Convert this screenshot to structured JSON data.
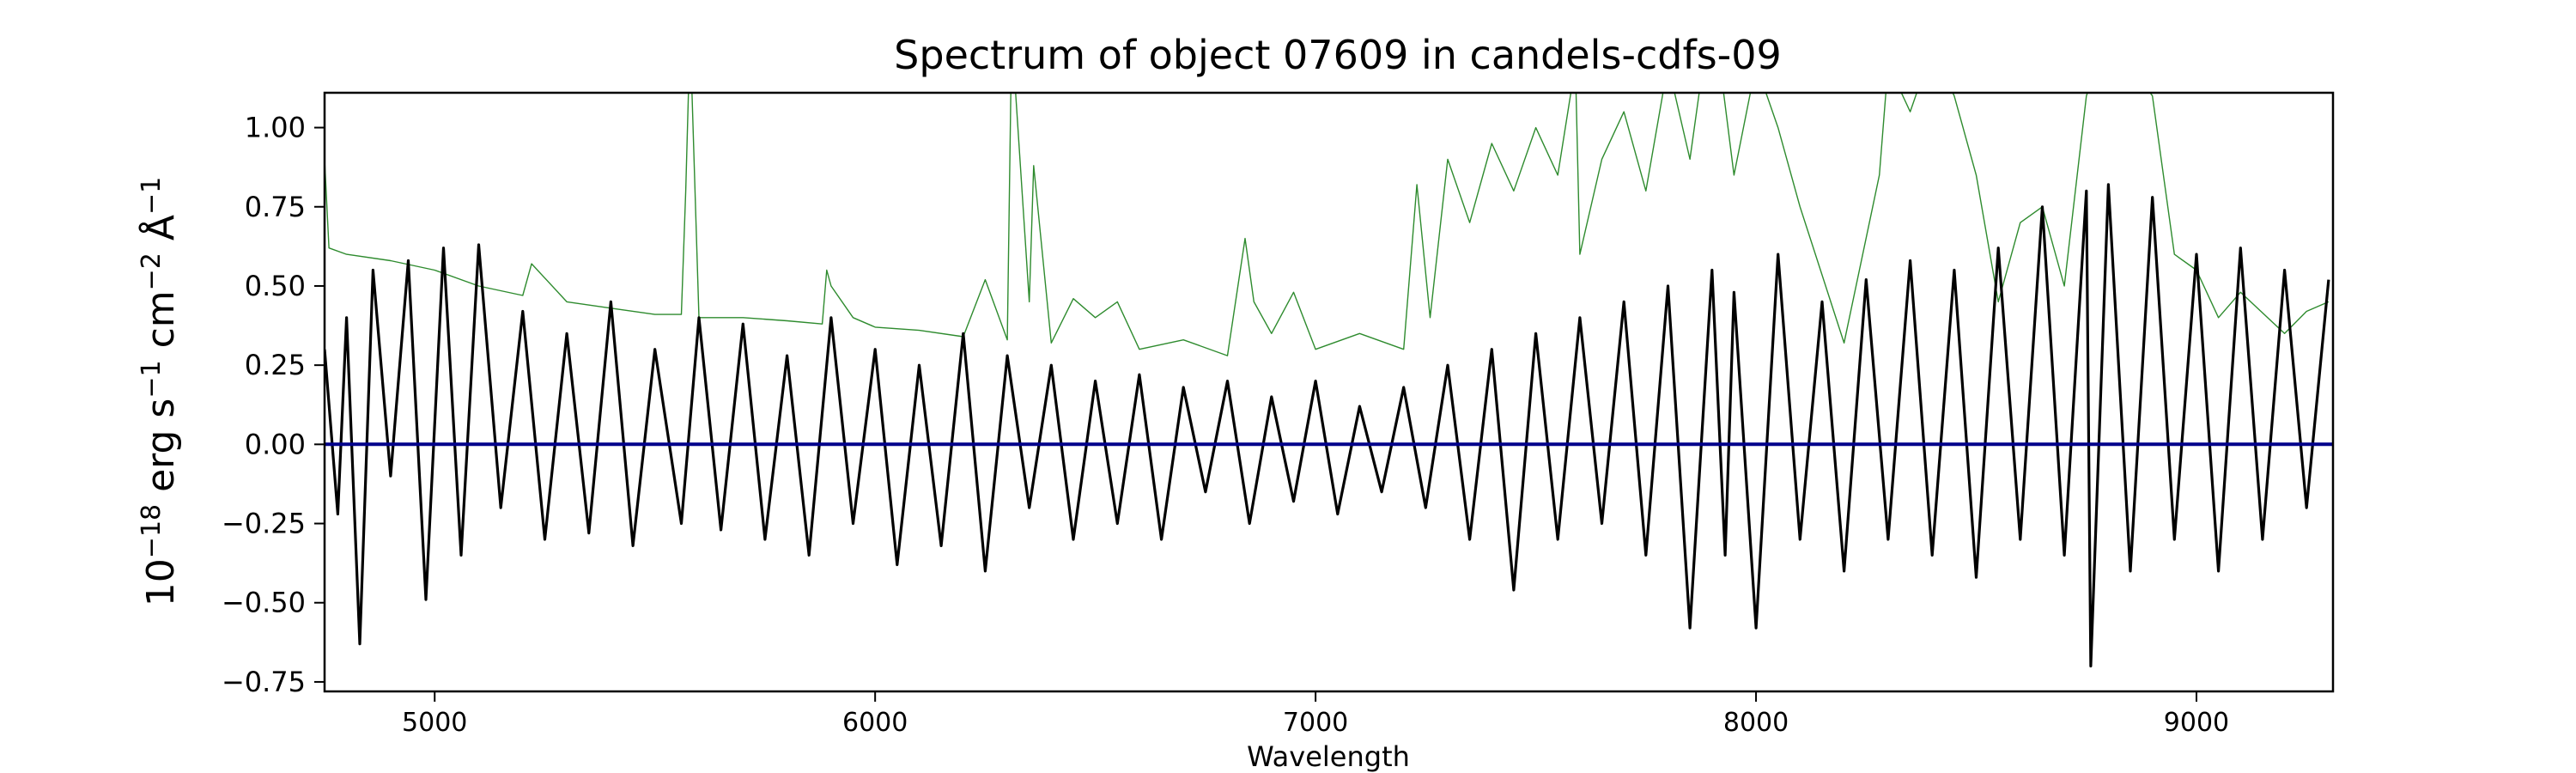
{
  "chart_data": {
    "type": "line",
    "title": "Spectrum of object 07609 in candels-cdfs-09",
    "xlabel": "Wavelength",
    "ylabel": {
      "base": "10",
      "exp1": "−18",
      "t1": " erg s",
      "exp2": "−1",
      "t2": " cm",
      "exp3": "−2",
      "t3": " Å",
      "exp4": "−1"
    },
    "xlim": [
      4750,
      9310
    ],
    "ylim": [
      -0.78,
      1.11
    ],
    "x_ticks": [
      5000,
      6000,
      7000,
      8000,
      9000
    ],
    "x_tick_labels": [
      "5000",
      "6000",
      "7000",
      "8000",
      "9000"
    ],
    "y_ticks": [
      -0.75,
      -0.5,
      -0.25,
      0.0,
      0.25,
      0.5,
      0.75,
      1.0
    ],
    "y_tick_labels": [
      "−0.75",
      "−0.50",
      "−0.25",
      "0.00",
      "0.25",
      "0.50",
      "0.75",
      "1.00"
    ],
    "grid": false,
    "legend": "none",
    "series": [
      {
        "role": "flux",
        "color": "#000000",
        "x": [
          4750,
          4780,
          4800,
          4830,
          4860,
          4900,
          4940,
          4980,
          5020,
          5060,
          5100,
          5150,
          5200,
          5250,
          5300,
          5350,
          5400,
          5450,
          5500,
          5560,
          5600,
          5650,
          5700,
          5750,
          5800,
          5850,
          5900,
          5950,
          6000,
          6050,
          6100,
          6150,
          6200,
          6250,
          6300,
          6350,
          6400,
          6450,
          6500,
          6550,
          6600,
          6650,
          6700,
          6750,
          6800,
          6850,
          6900,
          6950,
          7000,
          7050,
          7100,
          7150,
          7200,
          7250,
          7300,
          7350,
          7400,
          7450,
          7500,
          7550,
          7600,
          7650,
          7700,
          7750,
          7800,
          7850,
          7900,
          7930,
          7950,
          8000,
          8050,
          8100,
          8150,
          8200,
          8250,
          8300,
          8350,
          8400,
          8450,
          8500,
          8550,
          8600,
          8650,
          8700,
          8750,
          8760,
          8800,
          8850,
          8900,
          8950,
          9000,
          9050,
          9100,
          9150,
          9200,
          9250,
          9300
        ],
        "y": [
          0.3,
          -0.22,
          0.4,
          -0.63,
          0.55,
          -0.1,
          0.58,
          -0.49,
          0.62,
          -0.35,
          0.63,
          -0.2,
          0.42,
          -0.3,
          0.35,
          -0.28,
          0.45,
          -0.32,
          0.3,
          -0.25,
          0.4,
          -0.27,
          0.38,
          -0.3,
          0.28,
          -0.35,
          0.4,
          -0.25,
          0.3,
          -0.38,
          0.25,
          -0.32,
          0.35,
          -0.4,
          0.28,
          -0.2,
          0.25,
          -0.3,
          0.2,
          -0.25,
          0.22,
          -0.3,
          0.18,
          -0.15,
          0.2,
          -0.25,
          0.15,
          -0.18,
          0.2,
          -0.22,
          0.12,
          -0.15,
          0.18,
          -0.2,
          0.25,
          -0.3,
          0.3,
          -0.46,
          0.35,
          -0.3,
          0.4,
          -0.25,
          0.45,
          -0.35,
          0.5,
          -0.58,
          0.55,
          -0.35,
          0.48,
          -0.58,
          0.6,
          -0.3,
          0.45,
          -0.4,
          0.52,
          -0.3,
          0.58,
          -0.35,
          0.55,
          -0.42,
          0.62,
          -0.3,
          0.75,
          -0.35,
          0.8,
          -0.7,
          0.82,
          -0.4,
          0.78,
          -0.3,
          0.6,
          -0.4,
          0.62,
          -0.3,
          0.55,
          -0.2,
          0.52
        ]
      },
      {
        "role": "error",
        "color": "#2e8b2e",
        "x": [
          4750,
          4760,
          4800,
          4900,
          5000,
          5100,
          5200,
          5220,
          5300,
          5400,
          5500,
          5560,
          5570,
          5580,
          5600,
          5700,
          5800,
          5880,
          5890,
          5900,
          5950,
          6000,
          6100,
          6200,
          6250,
          6300,
          6310,
          6350,
          6360,
          6400,
          6450,
          6500,
          6550,
          6600,
          6700,
          6800,
          6840,
          6860,
          6900,
          6950,
          7000,
          7100,
          7200,
          7230,
          7260,
          7300,
          7350,
          7400,
          7450,
          7500,
          7550,
          7590,
          7600,
          7650,
          7700,
          7750,
          7800,
          7850,
          7900,
          7950,
          8000,
          8050,
          8100,
          8200,
          8280,
          8300,
          8350,
          8400,
          8450,
          8500,
          8550,
          8600,
          8650,
          8700,
          8750,
          8800,
          8850,
          8900,
          8950,
          9000,
          9050,
          9100,
          9200,
          9250,
          9300
        ],
        "y": [
          0.9,
          0.62,
          0.6,
          0.58,
          0.55,
          0.5,
          0.47,
          0.57,
          0.45,
          0.43,
          0.41,
          0.41,
          0.8,
          1.3,
          0.4,
          0.4,
          0.39,
          0.38,
          0.55,
          0.5,
          0.4,
          0.37,
          0.36,
          0.34,
          0.52,
          0.33,
          1.3,
          0.45,
          0.88,
          0.32,
          0.46,
          0.4,
          0.45,
          0.3,
          0.33,
          0.28,
          0.65,
          0.45,
          0.35,
          0.48,
          0.3,
          0.35,
          0.3,
          0.82,
          0.4,
          0.9,
          0.7,
          0.95,
          0.8,
          1.0,
          0.85,
          1.2,
          0.6,
          0.9,
          1.05,
          0.8,
          1.2,
          0.9,
          1.4,
          0.85,
          1.2,
          1.0,
          0.75,
          0.32,
          0.85,
          1.2,
          1.05,
          1.25,
          1.1,
          0.85,
          0.45,
          0.7,
          0.75,
          0.5,
          1.1,
          1.3,
          1.2,
          1.1,
          0.6,
          0.55,
          0.4,
          0.48,
          0.35,
          0.42,
          0.45
        ]
      },
      {
        "role": "zero",
        "color": "#00008b",
        "x": [
          4750,
          9310
        ],
        "y": [
          0,
          0
        ]
      }
    ]
  }
}
